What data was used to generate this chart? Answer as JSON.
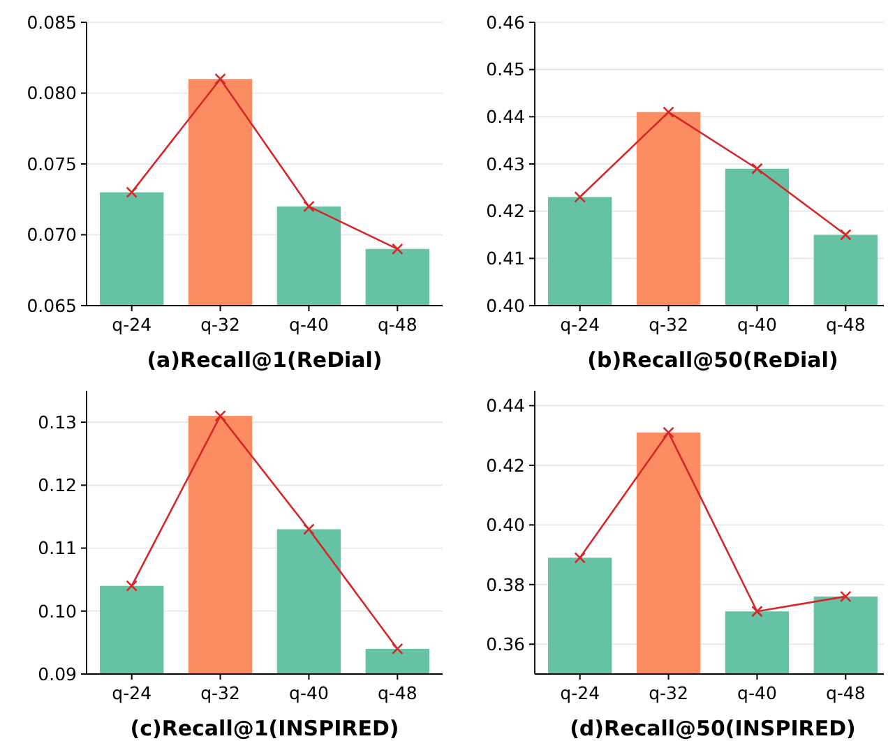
{
  "chart_data": [
    {
      "type": "bar",
      "title": "(a)Recall@1(ReDial)",
      "categories": [
        "q-24",
        "q-32",
        "q-40",
        "q-48"
      ],
      "ylim": [
        0.065,
        0.085
      ],
      "yticks": [
        {
          "value": 0.065,
          "label": "0.065"
        },
        {
          "value": 0.07,
          "label": "0.070"
        },
        {
          "value": 0.075,
          "label": "0.075"
        },
        {
          "value": 0.08,
          "label": "0.080"
        },
        {
          "value": 0.085,
          "label": "0.085"
        }
      ],
      "grid": "y",
      "series": [
        {
          "values": [
            0.073,
            0.081,
            0.072,
            0.069
          ],
          "colors": [
            "#66c2a5",
            "#fc8d62",
            "#66c2a5",
            "#66c2a5"
          ]
        },
        {
          "type": "line",
          "values": [
            0.073,
            0.081,
            0.072,
            0.069
          ],
          "color": "#d62728",
          "marker": "cross"
        }
      ]
    },
    {
      "type": "bar",
      "title": "(b)Recall@50(ReDial)",
      "categories": [
        "q-24",
        "q-32",
        "q-40",
        "q-48"
      ],
      "ylim": [
        0.4,
        0.46
      ],
      "yticks": [
        {
          "value": 0.4,
          "label": "0.40"
        },
        {
          "value": 0.41,
          "label": "0.41"
        },
        {
          "value": 0.42,
          "label": "0.42"
        },
        {
          "value": 0.43,
          "label": "0.43"
        },
        {
          "value": 0.44,
          "label": "0.44"
        },
        {
          "value": 0.45,
          "label": "0.45"
        },
        {
          "value": 0.46,
          "label": "0.46"
        }
      ],
      "grid": "y",
      "series": [
        {
          "values": [
            0.423,
            0.441,
            0.429,
            0.415
          ],
          "colors": [
            "#66c2a5",
            "#fc8d62",
            "#66c2a5",
            "#66c2a5"
          ]
        },
        {
          "type": "line",
          "values": [
            0.423,
            0.441,
            0.429,
            0.415
          ],
          "color": "#d62728",
          "marker": "cross"
        }
      ]
    },
    {
      "type": "bar",
      "title": "(c)Recall@1(INSPIRED)",
      "categories": [
        "q-24",
        "q-32",
        "q-40",
        "q-48"
      ],
      "ylim": [
        0.09,
        0.135
      ],
      "yticks": [
        {
          "value": 0.09,
          "label": "0.09"
        },
        {
          "value": 0.1,
          "label": "0.10"
        },
        {
          "value": 0.11,
          "label": "0.11"
        },
        {
          "value": 0.12,
          "label": "0.12"
        },
        {
          "value": 0.13,
          "label": "0.13"
        }
      ],
      "grid": "y",
      "series": [
        {
          "values": [
            0.104,
            0.131,
            0.113,
            0.094
          ],
          "colors": [
            "#66c2a5",
            "#fc8d62",
            "#66c2a5",
            "#66c2a5"
          ]
        },
        {
          "type": "line",
          "values": [
            0.104,
            0.131,
            0.113,
            0.094
          ],
          "color": "#d62728",
          "marker": "cross"
        }
      ]
    },
    {
      "type": "bar",
      "title": "(d)Recall@50(INSPIRED)",
      "categories": [
        "q-24",
        "q-32",
        "q-40",
        "q-48"
      ],
      "ylim": [
        0.35,
        0.445
      ],
      "yticks": [
        {
          "value": 0.36,
          "label": "0.36"
        },
        {
          "value": 0.38,
          "label": "0.38"
        },
        {
          "value": 0.4,
          "label": "0.40"
        },
        {
          "value": 0.42,
          "label": "0.42"
        },
        {
          "value": 0.44,
          "label": "0.44"
        }
      ],
      "grid": "y",
      "series": [
        {
          "values": [
            0.389,
            0.431,
            0.371,
            0.376
          ],
          "colors": [
            "#66c2a5",
            "#fc8d62",
            "#66c2a5",
            "#66c2a5"
          ]
        },
        {
          "type": "line",
          "values": [
            0.389,
            0.431,
            0.371,
            0.376
          ],
          "color": "#d62728",
          "marker": "cross"
        }
      ]
    }
  ]
}
